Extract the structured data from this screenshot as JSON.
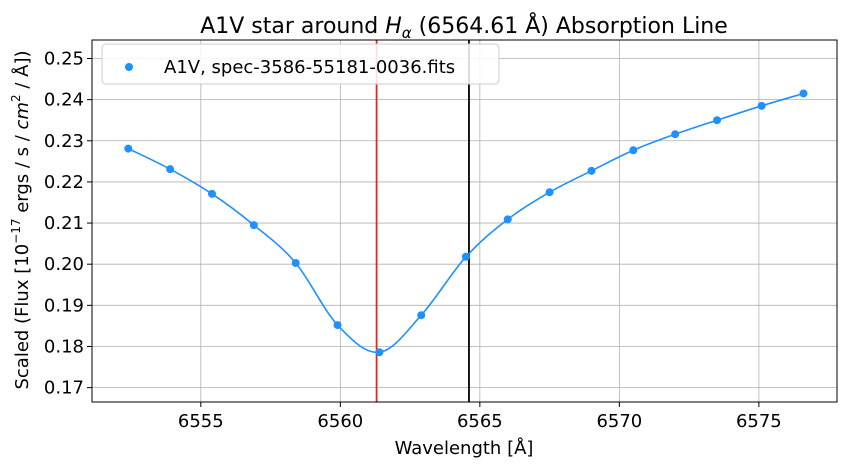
{
  "chart_data": {
    "type": "scatter",
    "title_prefix": "A1V star around ",
    "title_symbol": "H",
    "title_subscript": "α",
    "title_suffix": " (6564.61 Å) Absorption Line",
    "xlabel": "Wavelength [Å]",
    "ylabel_prefix": "Scaled (Flux [10",
    "ylabel_sup1": "−17",
    "ylabel_mid": " ergs / s / ",
    "ylabel_cm": "cm",
    "ylabel_sup2": "2",
    "ylabel_end": " / Å])",
    "xlim": [
      6551.1,
      6577.8
    ],
    "ylim": [
      0.1665,
      0.2545
    ],
    "xticks": [
      6555,
      6560,
      6565,
      6570,
      6575
    ],
    "yticks": [
      0.17,
      0.18,
      0.19,
      0.2,
      0.21,
      0.22,
      0.23,
      0.24,
      0.25
    ],
    "ytick_labels": [
      "0.17",
      "0.18",
      "0.19",
      "0.20",
      "0.21",
      "0.22",
      "0.23",
      "0.24",
      "0.25"
    ],
    "grid": true,
    "legend_position": "top-left",
    "series": [
      {
        "name": "A1V, spec-3586-55181-0036.fits",
        "color": "#1e90ff",
        "x": [
          6552.4,
          6553.9,
          6555.4,
          6556.9,
          6558.4,
          6559.9,
          6561.4,
          6562.9,
          6564.5,
          6566.0,
          6567.5,
          6569.0,
          6570.5,
          6572.0,
          6573.5,
          6575.1,
          6576.6
        ],
        "y": [
          0.2281,
          0.2231,
          0.2171,
          0.2095,
          0.2003,
          0.1852,
          0.1786,
          0.1876,
          0.2018,
          0.2109,
          0.2175,
          0.2227,
          0.2277,
          0.2316,
          0.235,
          0.2385,
          0.2415
        ]
      }
    ],
    "vlines": [
      {
        "x": 6561.3,
        "color": "#e6261f"
      },
      {
        "x": 6564.61,
        "color": "#000000"
      }
    ]
  }
}
